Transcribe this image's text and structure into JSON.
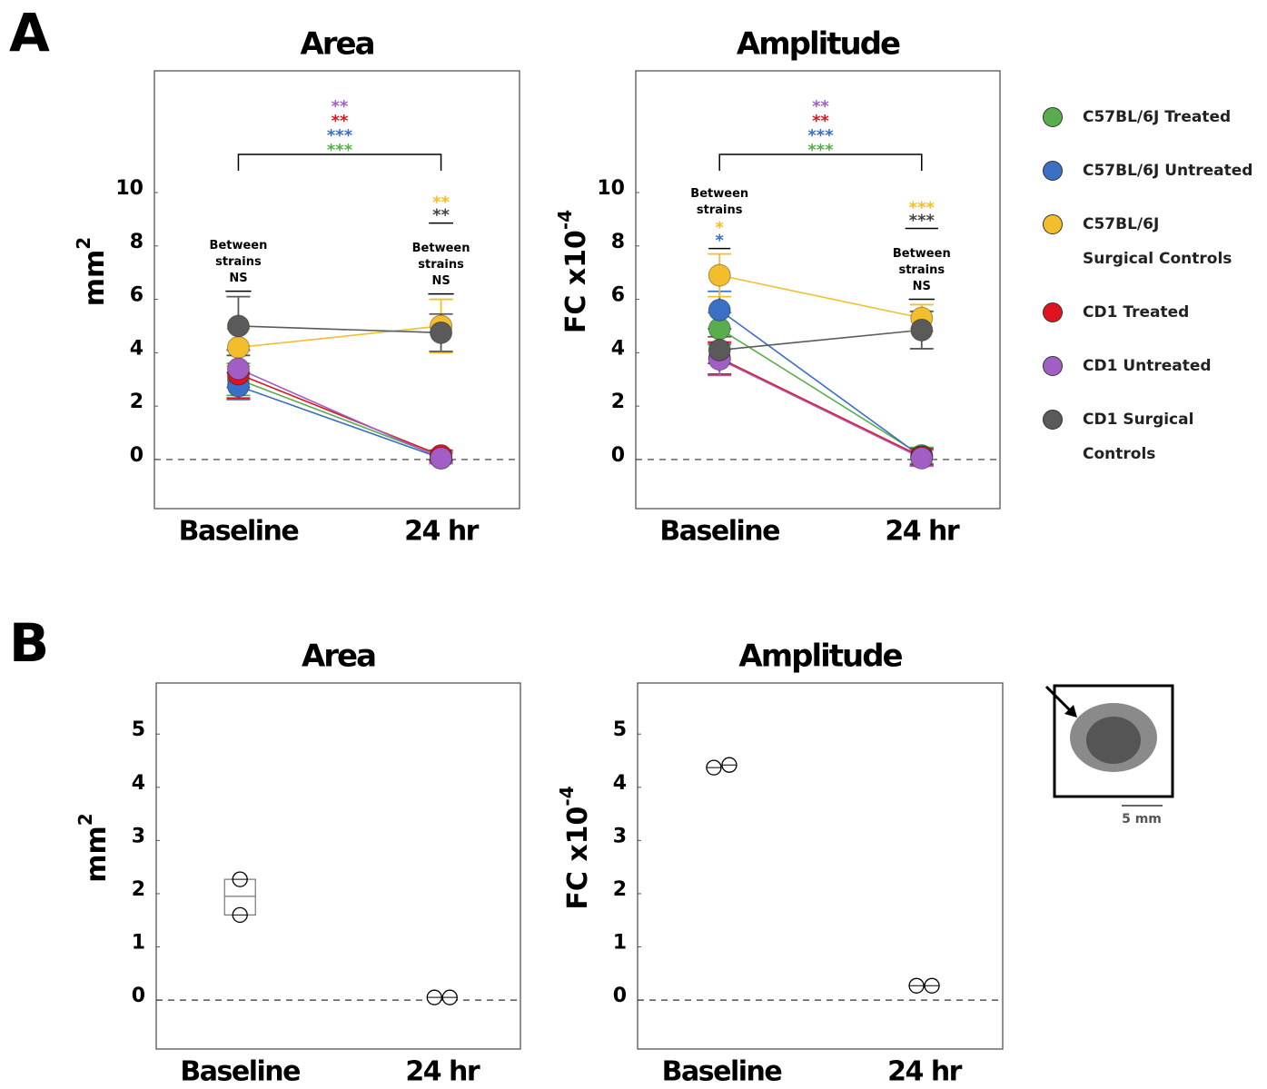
{
  "panels": [
    "A",
    "B"
  ],
  "inset": {
    "scale_label": "5 mm"
  },
  "chart_data": [
    {
      "type": "line",
      "title": "Area",
      "ylabel": "mm",
      "ylabel_sup": "2",
      "categories": [
        "Baseline",
        "24 hr"
      ],
      "ylim": [
        -1.84,
        14.56
      ],
      "yticks": [
        0,
        2,
        4,
        6,
        8,
        10
      ],
      "reference_line": 0,
      "series": [
        {
          "name": "C57BL/6J Treated",
          "color": "#5aad4e",
          "values": [
            3.0,
            0.1
          ],
          "errors": [
            0.6,
            0.2
          ]
        },
        {
          "name": "C57BL/6J Untreated",
          "color": "#3a6fc4",
          "values": [
            2.75,
            0.05
          ],
          "errors": [
            0.5,
            0.2
          ]
        },
        {
          "name": "C57BL/6J\nSurgical Controls",
          "color": "#f2be2c",
          "values": [
            4.2,
            5.0
          ],
          "errors": [
            0.7,
            1.0
          ]
        },
        {
          "name": "CD1 Treated",
          "color": "#e0141e",
          "values": [
            3.2,
            0.15
          ],
          "errors": [
            0.9,
            0.2
          ]
        },
        {
          "name": "CD1 Untreated",
          "color": "#a25ec4",
          "values": [
            3.4,
            0.05
          ],
          "errors": [
            0.7,
            0.2
          ]
        },
        {
          "name": "CD1 Surgical\nControls",
          "color": "#5a5a5a",
          "values": [
            5.0,
            4.75
          ],
          "errors": [
            1.1,
            0.7
          ]
        }
      ],
      "bracket_stars": [
        {
          "text": "**",
          "color": "#a25ec4"
        },
        {
          "text": "**",
          "color": "#e0141e"
        },
        {
          "text": "***",
          "color": "#3a6fc4"
        },
        {
          "text": "***",
          "color": "#5aad4e"
        }
      ],
      "groups": [
        [
          {
            "items": [
              {
                "text": "Between",
                "color": "#000"
              },
              {
                "text": "strains",
                "color": "#000"
              },
              {
                "text": "NS",
                "color": "#000"
              }
            ]
          }
        ],
        [
          {
            "items": [
              {
                "text": "**",
                "color": "#f2be2c"
              },
              {
                "text": "**",
                "color": "#444"
              }
            ]
          },
          {
            "items": [
              {
                "text": "Between",
                "color": "#000"
              },
              {
                "text": "strains",
                "color": "#000"
              },
              {
                "text": "NS",
                "color": "#000"
              }
            ]
          }
        ]
      ]
    },
    {
      "type": "line",
      "title": "Amplitude",
      "ylabel": "FC x10",
      "ylabel_sup": "-4",
      "categories": [
        "Baseline",
        "24 hr"
      ],
      "ylim": [
        -1.84,
        14.56
      ],
      "yticks": [
        0,
        2,
        4,
        6,
        8,
        10
      ],
      "reference_line": 0,
      "series": [
        {
          "color": "#5aad4e",
          "values": [
            4.9,
            0.15
          ],
          "errors": [
            0.6,
            0.3
          ]
        },
        {
          "color": "#3a6fc4",
          "values": [
            5.6,
            0.1
          ],
          "errors": [
            0.7,
            0.3
          ]
        },
        {
          "color": "#f2be2c",
          "values": [
            6.9,
            5.3
          ],
          "errors": [
            0.8,
            0.5
          ]
        },
        {
          "color": "#e0141e",
          "values": [
            3.8,
            0.1
          ],
          "errors": [
            0.6,
            0.3
          ]
        },
        {
          "color": "#a25ec4",
          "values": [
            3.75,
            0.05
          ],
          "errors": [
            0.6,
            0.3
          ]
        },
        {
          "color": "#5a5a5a",
          "values": [
            4.1,
            4.85
          ],
          "errors": [
            0.5,
            0.7
          ]
        }
      ],
      "bracket_stars": [
        {
          "text": "**",
          "color": "#a25ec4"
        },
        {
          "text": "**",
          "color": "#e0141e"
        },
        {
          "text": "***",
          "color": "#3a6fc4"
        },
        {
          "text": "***",
          "color": "#5aad4e"
        }
      ],
      "groups": [
        [
          {
            "items": [
              {
                "text": "Between",
                "color": "#000"
              },
              {
                "text": "strains",
                "color": "#000"
              },
              {
                "text": "*",
                "color": "#f2be2c"
              },
              {
                "text": "*",
                "color": "#3a6fc4"
              }
            ]
          }
        ],
        [
          {
            "items": [
              {
                "text": "***",
                "color": "#f2be2c"
              },
              {
                "text": "***",
                "color": "#444"
              }
            ]
          },
          {
            "items": [
              {
                "text": "Between",
                "color": "#000"
              },
              {
                "text": "strains",
                "color": "#000"
              },
              {
                "text": "NS",
                "color": "#000"
              }
            ]
          }
        ]
      ]
    },
    {
      "type": "dot",
      "title": "Area",
      "ylabel": "mm",
      "ylabel_sup": "2",
      "categories": [
        "Baseline",
        "24 hr"
      ],
      "ylim": [
        -0.92,
        5.96
      ],
      "yticks": [
        0,
        1,
        2,
        3,
        4,
        5
      ],
      "reference_line": 0,
      "values": [
        [
          2.27,
          1.6
        ],
        [
          0.05,
          0.05
        ]
      ],
      "boxes": [
        {
          "q1": 1.6,
          "median": 1.95,
          "q3": 2.27
        },
        null
      ]
    },
    {
      "type": "dot",
      "title": "Amplitude",
      "ylabel": "FC x10",
      "ylabel_sup": "-4",
      "categories": [
        "Baseline",
        "24 hr"
      ],
      "ylim": [
        -0.92,
        5.96
      ],
      "yticks": [
        0,
        1,
        2,
        3,
        4,
        5
      ],
      "reference_line": 0,
      "values": [
        [
          4.37,
          4.42
        ],
        [
          0.27,
          0.27
        ]
      ]
    }
  ]
}
